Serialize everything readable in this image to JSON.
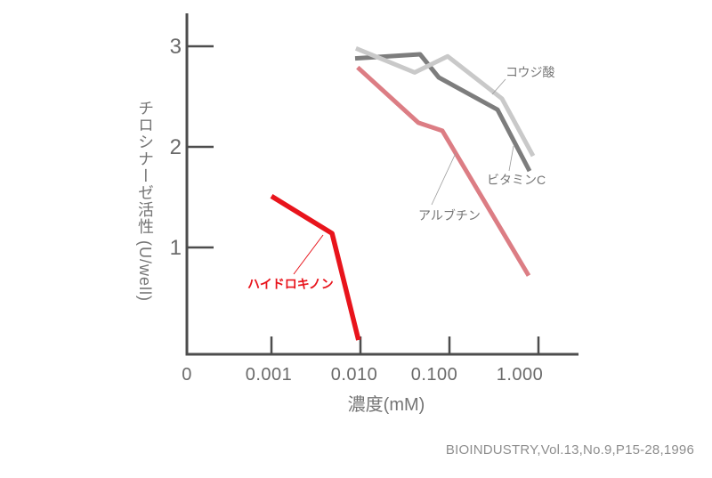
{
  "figure": {
    "citation": "BIOINDUSTRY,Vol.13,No.9,P15-28,1996",
    "background": "#ffffff"
  },
  "colors": {
    "axis": "#4d4d4d",
    "tick_label": "#6a6a6a",
    "annotation_text": "#757575",
    "leader_line": "#9a9a9a",
    "citation_text": "#8e8e8e"
  },
  "chart_data": {
    "type": "line",
    "title": "",
    "xlabel": "濃度(mM)",
    "ylabel": "チロシナーゼ活性 (U/well)",
    "x_scale": "log",
    "x_axis_note": "origin tick labeled 0, then log decades 0.001 to 1.000",
    "ylim": [
      0,
      3.3
    ],
    "grid": false,
    "legend": "inline annotations with leader lines",
    "x_ticks": [
      {
        "label": "0",
        "value": 0
      },
      {
        "label": "0.001",
        "value": 0.001
      },
      {
        "label": "0.010",
        "value": 0.01
      },
      {
        "label": "0.100",
        "value": 0.1
      },
      {
        "label": "1.000",
        "value": 1.0
      }
    ],
    "y_ticks": [
      {
        "label": "1",
        "value": 1
      },
      {
        "label": "2",
        "value": 2
      },
      {
        "label": "3",
        "value": 3
      }
    ],
    "series": [
      {
        "key": "hydroquinone",
        "name": "ハイドロキノン",
        "color": "#e8141c",
        "points": [
          [
            0.001,
            1.51
          ],
          [
            0.0048,
            1.14
          ],
          [
            0.0095,
            0.08
          ]
        ]
      },
      {
        "key": "arbutin",
        "name": "アルブチン",
        "color": "#dc7d84",
        "points": [
          [
            0.0093,
            2.79
          ],
          [
            0.0448,
            2.24
          ],
          [
            0.0832,
            2.16
          ],
          [
            0.776,
            0.72
          ]
        ]
      },
      {
        "key": "vitamin_c",
        "name": "ビタミンC",
        "color": "#7d7d7d",
        "points": [
          [
            0.0087,
            2.88
          ],
          [
            0.0468,
            2.92
          ],
          [
            0.0759,
            2.69
          ],
          [
            0.347,
            2.37
          ],
          [
            0.794,
            1.76
          ]
        ]
      },
      {
        "key": "kojic_acid",
        "name": "コウジ酸",
        "color": "#c9c9c9",
        "points": [
          [
            0.0089,
            2.98
          ],
          [
            0.0407,
            2.74
          ],
          [
            0.0955,
            2.9
          ],
          [
            0.389,
            2.48
          ],
          [
            0.871,
            1.91
          ]
        ]
      }
    ]
  }
}
